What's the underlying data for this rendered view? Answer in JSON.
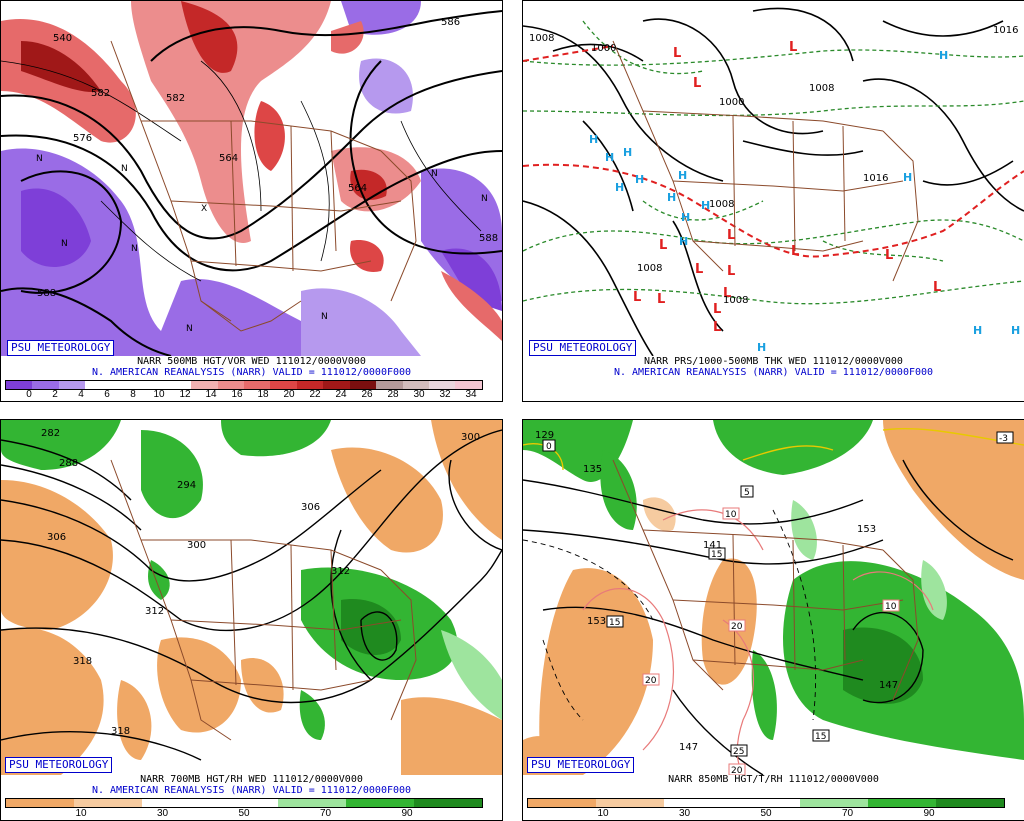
{
  "branding": "PSU METEOROLOGY",
  "panels": [
    {
      "id": "500mb",
      "caption1": "NARR 500MB HGT/VOR WED 111012/0000V000",
      "caption2": "N. AMERICAN REANALYSIS (NARR) VALID = 111012/0000F000",
      "scale": {
        "labels": [
          "0",
          "2",
          "4",
          "6",
          "8",
          "10",
          "12",
          "14",
          "16",
          "18",
          "20",
          "22",
          "24",
          "26",
          "28",
          "30",
          "32",
          "34"
        ],
        "colors": [
          "#7e3fd8",
          "#9a6ce6",
          "#b699ee",
          "#ffffff",
          "#ffffff",
          "#ffffff",
          "#ffffff",
          "#f2b1b1",
          "#ec8d8d",
          "#e66a6a",
          "#dd4646",
          "#c42828",
          "#a01818",
          "#7a0f0f",
          "#b59a9a",
          "#d2bcbc",
          "#e8d6dc",
          "#f3c6d2"
        ]
      },
      "contour_labels": [
        "540",
        "576",
        "582",
        "564",
        "582",
        "588",
        "588",
        "586",
        "564"
      ]
    },
    {
      "id": "sfc",
      "caption1": "NARR PRS/1000-500MB THK WED 111012/0000V000",
      "caption2": "N. AMERICAN REANALYSIS (NARR) VALID = 111012/0000F000",
      "contour_labels": [
        "1008",
        "1000",
        "1000",
        "1008",
        "1016",
        "1016",
        "1008",
        "1008",
        "1008"
      ]
    },
    {
      "id": "700mb",
      "caption1": "NARR 700MB HGT/RH WED 111012/0000V000",
      "caption2": "N. AMERICAN REANALYSIS (NARR) VALID = 111012/0000F000",
      "scale": {
        "labels": [
          "10",
          "30",
          "50",
          "70",
          "90"
        ],
        "colors": [
          "#f0a866",
          "#f6cba0",
          "#ffffff",
          "#ffffff",
          "#9ee49e",
          "#33b533",
          "#1f8a1f"
        ]
      },
      "contour_labels": [
        "282",
        "288",
        "294",
        "300",
        "306",
        "306",
        "312",
        "312",
        "318",
        "318",
        "300"
      ]
    },
    {
      "id": "850mb",
      "caption1": "NARR 850MB HGT/T/RH 111012/0000V000",
      "scale": {
        "labels": [
          "10",
          "30",
          "50",
          "70",
          "90"
        ],
        "colors": [
          "#f0a866",
          "#f6cba0",
          "#ffffff",
          "#ffffff",
          "#9ee49e",
          "#33b533",
          "#1f8a1f"
        ]
      },
      "contour_labels": [
        "129",
        "135",
        "141",
        "147",
        "147",
        "153",
        "153"
      ],
      "temp_boxes": [
        "0",
        "5",
        "10",
        "15",
        "15",
        "20",
        "20",
        "25",
        "20",
        "10",
        "15",
        "-3"
      ]
    }
  ],
  "pressure_centers": {
    "high": "H",
    "low": "L"
  },
  "vorticity_marker": "N",
  "vorticity_min_marker": "X"
}
